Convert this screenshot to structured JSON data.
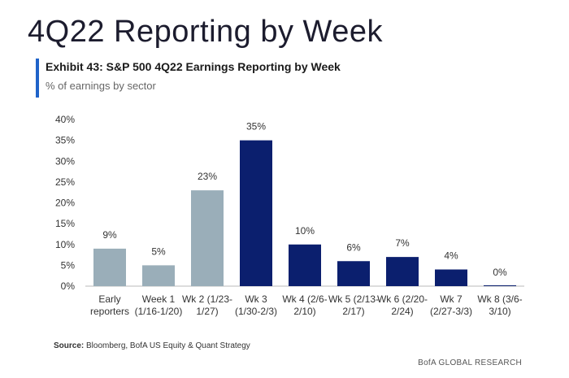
{
  "page": {
    "title": "4Q22 Reporting by Week"
  },
  "exhibit": {
    "title": "Exhibit 43: S&P 500 4Q22 Earnings Reporting by Week",
    "subtitle": "% of earnings by sector"
  },
  "footer": {
    "source_label": "Source:",
    "source_text": "Bloomberg, BofA US Equity & Quant Strategy",
    "brand": "BofA GLOBAL RESEARCH"
  },
  "colors": {
    "past_bar": "#9aaeb9",
    "current_bar": "#0b1f6e",
    "accent": "#1f63c9"
  },
  "chart_data": {
    "type": "bar",
    "categories": [
      [
        "Early",
        "reporters"
      ],
      [
        "Week 1",
        "(1/16-1/20)"
      ],
      [
        "Wk 2 (1/23-",
        "1/27)"
      ],
      [
        "Wk 3",
        "(1/30-2/3)"
      ],
      [
        "Wk 4 (2/6-",
        "2/10)"
      ],
      [
        "Wk 5 (2/13-",
        "2/17)"
      ],
      [
        "Wk 6 (2/20-",
        "2/24)"
      ],
      [
        "Wk 7",
        "(2/27-3/3)"
      ],
      [
        "Wk 8 (3/6-",
        "3/10)"
      ]
    ],
    "values": [
      9,
      5,
      23,
      35,
      10,
      6,
      7,
      4,
      0
    ],
    "data_labels": [
      "9%",
      "5%",
      "23%",
      "35%",
      "10%",
      "6%",
      "7%",
      "4%",
      "0%"
    ],
    "bar_status": [
      "past",
      "past",
      "past",
      "current",
      "current",
      "current",
      "current",
      "current",
      "current"
    ],
    "yticks": [
      "0%",
      "5%",
      "10%",
      "15%",
      "20%",
      "25%",
      "30%",
      "35%",
      "40%"
    ],
    "ylim": [
      0,
      40
    ],
    "grid": false,
    "legend": "none"
  }
}
